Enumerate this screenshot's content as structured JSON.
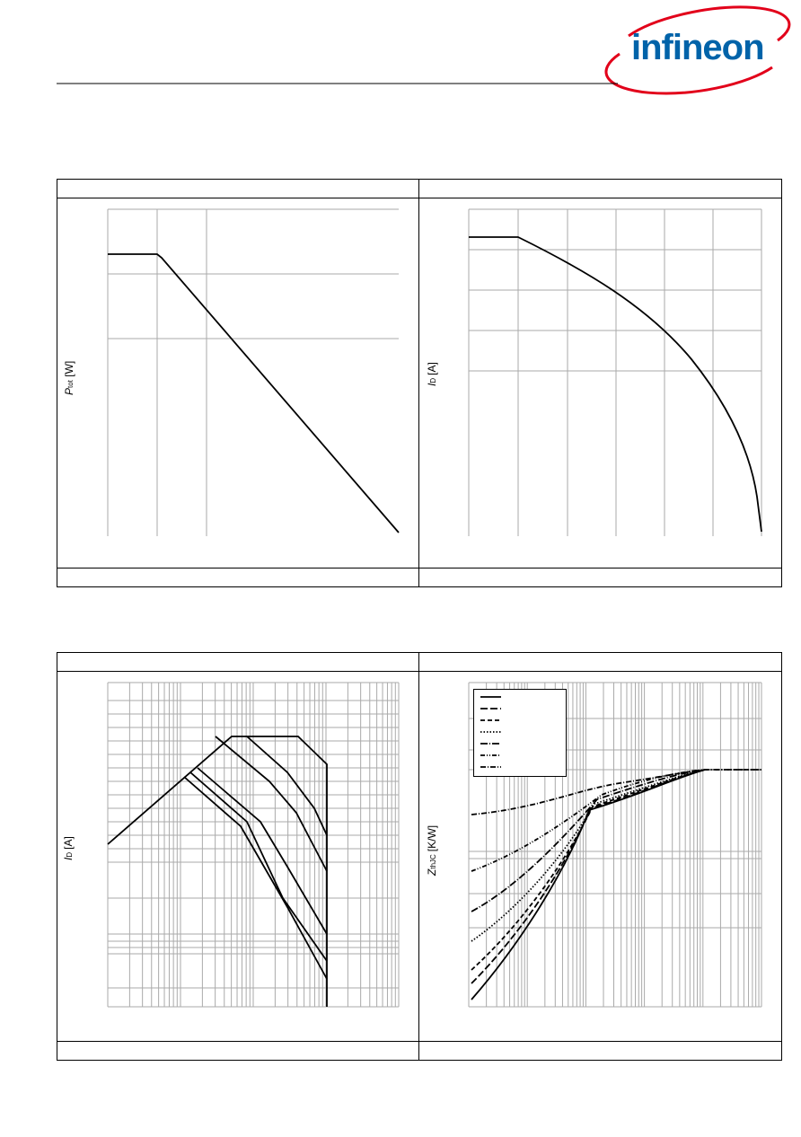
{
  "header": {
    "logo": "infineon"
  },
  "panels": [
    {
      "y_label": {
        "symbol": "P",
        "subscript": "tot",
        "unit": "[W]"
      }
    },
    {
      "y_label": {
        "symbol": "I",
        "subscript": "D",
        "unit": "[A]"
      }
    },
    {
      "y_label": {
        "symbol": "I",
        "subscript": "D",
        "unit": "[A]"
      }
    },
    {
      "y_label": {
        "symbol": "Z",
        "subscript": "thJC",
        "unit": "[K/W]"
      }
    }
  ]
}
